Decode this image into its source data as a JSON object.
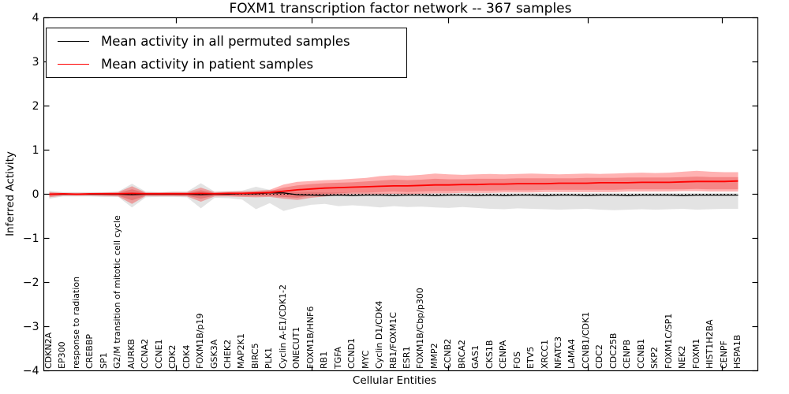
{
  "chart_data": {
    "type": "line",
    "title": "FOXM1 transcription factor network -- 367 samples",
    "xlabel": "Cellular Entities",
    "ylabel": "Inferred Activity",
    "ylim": [
      -4,
      4
    ],
    "ytick_labels": [
      "4",
      "3",
      "2",
      "1",
      "0",
      "−1",
      "−2",
      "−3",
      "−4"
    ],
    "ytick_values": [
      4,
      3,
      2,
      1,
      0,
      -1,
      -2,
      -3,
      -4
    ],
    "grid": false,
    "legend_position": "upper left",
    "zero_reference_line": 0,
    "categories": [
      "CDKN2A",
      "EP300",
      "response to radiation",
      "CREBBP",
      "SP1",
      "G2/M transition of mitotic cell cycle",
      "AURKB",
      "CCNA2",
      "CCNE1",
      "CDK2",
      "CDK4",
      "FOXM1B/p19",
      "GSK3A",
      "CHEK2",
      "MAP2K1",
      "BIRC5",
      "PLK1",
      "Cyclin A-E1/CDK1-2",
      "ONECUT1",
      "FOXM1B/HNF6",
      "RB1",
      "TGFA",
      "CCND1",
      "MYC",
      "Cyclin D1/CDK4",
      "RB1/FOXM1C",
      "ESR1",
      "FOXM1B/Cbp/p300",
      "MMP2",
      "CCNB2",
      "BRCA2",
      "GAS1",
      "CKS1B",
      "CENPA",
      "FOS",
      "ETV5",
      "XRCC1",
      "NFATC3",
      "LAMA4",
      "CCNB1/CDK1",
      "CDC2",
      "CDC25B",
      "CENPB",
      "CCNB1",
      "SKP2",
      "FOXM1C/SP1",
      "NEK2",
      "FOXM1",
      "HIST1H2BA",
      "CENPF",
      "HSPA1B"
    ],
    "series": [
      {
        "name": "Mean activity in all permuted samples",
        "color": "#000000",
        "values": [
          0,
          0,
          0,
          0,
          0,
          0,
          -0.01,
          0,
          0,
          0,
          0,
          -0.01,
          0,
          0,
          0.01,
          0.01,
          0.03,
          0.03,
          -0.01,
          -0.02,
          -0.03,
          -0.02,
          -0.03,
          -0.02,
          -0.02,
          -0.03,
          -0.02,
          -0.02,
          -0.03,
          -0.02,
          -0.02,
          -0.03,
          -0.02,
          -0.03,
          -0.02,
          -0.02,
          -0.03,
          -0.02,
          -0.02,
          -0.03,
          -0.02,
          -0.02,
          -0.03,
          -0.02,
          -0.02,
          -0.02,
          -0.03,
          -0.02,
          -0.02,
          -0.02,
          -0.02
        ]
      },
      {
        "name": "Mean activity in patient samples",
        "color": "#ff0000",
        "values": [
          0,
          0.01,
          0,
          0.01,
          0.01,
          0.01,
          0.02,
          0.01,
          0.01,
          0.01,
          0.01,
          0.02,
          0.01,
          0.02,
          0.02,
          0.03,
          0.04,
          0.07,
          0.1,
          0.12,
          0.14,
          0.15,
          0.16,
          0.17,
          0.18,
          0.19,
          0.19,
          0.2,
          0.21,
          0.21,
          0.22,
          0.22,
          0.23,
          0.23,
          0.24,
          0.24,
          0.24,
          0.25,
          0.25,
          0.25,
          0.26,
          0.26,
          0.26,
          0.27,
          0.27,
          0.27,
          0.28,
          0.29,
          0.29,
          0.29,
          0.3
        ]
      }
    ],
    "bands": [
      {
        "name": "permuted-samples-range",
        "color": "#000000",
        "opacity": 0.11,
        "lower": [
          -0.1,
          -0.05,
          -0.05,
          -0.05,
          -0.06,
          -0.06,
          -0.3,
          -0.07,
          -0.06,
          -0.06,
          -0.07,
          -0.32,
          -0.08,
          -0.09,
          -0.12,
          -0.34,
          -0.2,
          -0.38,
          -0.3,
          -0.24,
          -0.22,
          -0.27,
          -0.25,
          -0.27,
          -0.3,
          -0.27,
          -0.29,
          -0.28,
          -0.3,
          -0.31,
          -0.29,
          -0.31,
          -0.33,
          -0.34,
          -0.32,
          -0.33,
          -0.34,
          -0.35,
          -0.34,
          -0.33,
          -0.35,
          -0.36,
          -0.35,
          -0.34,
          -0.35,
          -0.34,
          -0.33,
          -0.35,
          -0.34,
          -0.33,
          -0.33
        ],
        "upper": [
          0.08,
          0.05,
          0.05,
          0.05,
          0.05,
          0.06,
          0.24,
          0.06,
          0.05,
          0.06,
          0.06,
          0.25,
          0.06,
          0.07,
          0.08,
          0.17,
          0.1,
          0.08,
          0.05,
          0.05,
          0.04,
          0.04,
          0.04,
          0.04,
          0.03,
          0.03,
          0.03,
          0.03,
          0.03,
          0.03,
          0.03,
          0.03,
          0.03,
          0.03,
          0.03,
          0.03,
          0.03,
          0.03,
          0.03,
          0.03,
          0.03,
          0.03,
          0.03,
          0.03,
          0.03,
          0.03,
          0.03,
          0.03,
          0.03,
          0.03,
          0.03
        ]
      },
      {
        "name": "patient-samples-outer-range",
        "color": "#ff0000",
        "opacity": 0.3,
        "lower": [
          -0.07,
          -0.03,
          -0.03,
          -0.03,
          -0.04,
          -0.05,
          -0.22,
          -0.04,
          -0.04,
          -0.04,
          -0.05,
          -0.17,
          -0.05,
          -0.05,
          -0.06,
          -0.07,
          -0.06,
          -0.1,
          -0.13,
          -0.08,
          -0.05,
          -0.02,
          0.0,
          0.0,
          0.0,
          0.01,
          0.0,
          0.01,
          0.02,
          0.02,
          0.03,
          0.03,
          0.03,
          0.04,
          0.04,
          0.04,
          0.05,
          0.05,
          0.05,
          0.05,
          0.05,
          0.05,
          0.06,
          0.06,
          0.06,
          0.06,
          0.07,
          0.07,
          0.06,
          0.06,
          0.06
        ],
        "upper": [
          0.05,
          0.03,
          0.03,
          0.03,
          0.04,
          0.05,
          0.18,
          0.04,
          0.04,
          0.05,
          0.05,
          0.15,
          0.05,
          0.06,
          0.07,
          0.08,
          0.1,
          0.22,
          0.28,
          0.3,
          0.32,
          0.33,
          0.35,
          0.37,
          0.41,
          0.43,
          0.42,
          0.44,
          0.47,
          0.45,
          0.44,
          0.45,
          0.46,
          0.45,
          0.46,
          0.47,
          0.46,
          0.45,
          0.46,
          0.47,
          0.46,
          0.47,
          0.48,
          0.49,
          0.48,
          0.49,
          0.51,
          0.53,
          0.51,
          0.5,
          0.5
        ]
      },
      {
        "name": "patient-samples-inner-range",
        "color": "#dd2222",
        "opacity": 0.3,
        "lower": [
          -0.04,
          -0.02,
          -0.02,
          -0.02,
          -0.02,
          -0.03,
          -0.14,
          -0.03,
          -0.03,
          -0.03,
          -0.03,
          -0.1,
          -0.03,
          -0.03,
          -0.04,
          -0.04,
          -0.04,
          -0.06,
          -0.08,
          -0.03,
          0.0,
          0.02,
          0.04,
          0.04,
          0.05,
          0.06,
          0.05,
          0.06,
          0.07,
          0.07,
          0.08,
          0.08,
          0.08,
          0.09,
          0.09,
          0.09,
          0.1,
          0.1,
          0.1,
          0.1,
          0.1,
          0.1,
          0.11,
          0.11,
          0.11,
          0.11,
          0.11,
          0.12,
          0.11,
          0.11,
          0.11
        ],
        "upper": [
          0.03,
          0.02,
          0.02,
          0.02,
          0.02,
          0.03,
          0.11,
          0.03,
          0.03,
          0.03,
          0.03,
          0.09,
          0.03,
          0.04,
          0.04,
          0.05,
          0.07,
          0.15,
          0.2,
          0.23,
          0.25,
          0.26,
          0.27,
          0.29,
          0.31,
          0.33,
          0.32,
          0.33,
          0.35,
          0.34,
          0.34,
          0.35,
          0.35,
          0.35,
          0.36,
          0.36,
          0.36,
          0.36,
          0.36,
          0.37,
          0.37,
          0.37,
          0.38,
          0.38,
          0.38,
          0.38,
          0.39,
          0.4,
          0.39,
          0.39,
          0.39
        ]
      }
    ]
  }
}
